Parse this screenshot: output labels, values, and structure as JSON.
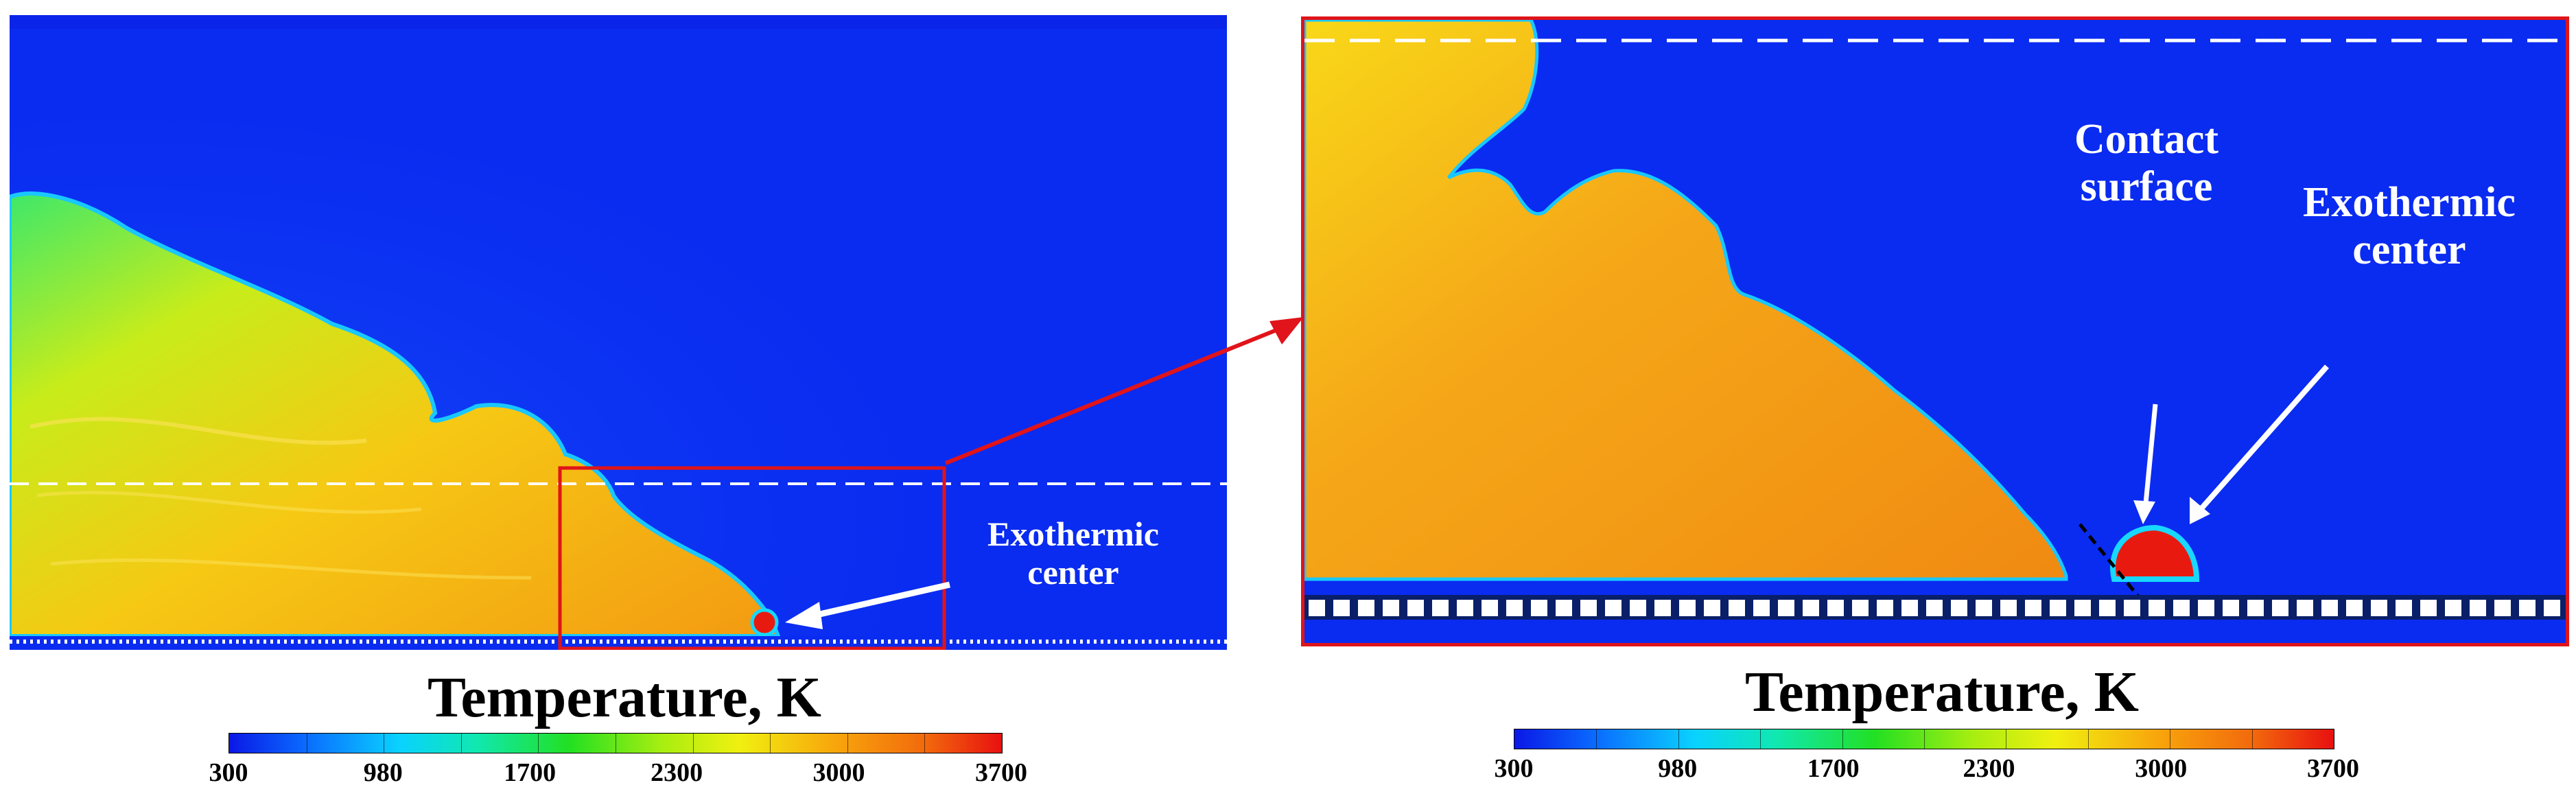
{
  "figure": {
    "left_panel": {
      "annotation": [
        "Exothermic",
        "center"
      ]
    },
    "right_panel": {
      "annotation_contact": [
        "Contact",
        "surface"
      ],
      "annotation_exothermic": [
        "Exothermic",
        "center"
      ]
    },
    "colorbar": {
      "title": "Temperature, K",
      "ticks": [
        "300",
        "980",
        "1700",
        "2300",
        "3000",
        "3700"
      ]
    },
    "colors": {
      "background_field": "#0a2bf0",
      "hot_gas": "#f5a315",
      "zoom_box": "#e0141a",
      "arrow": "#ffffff"
    }
  }
}
